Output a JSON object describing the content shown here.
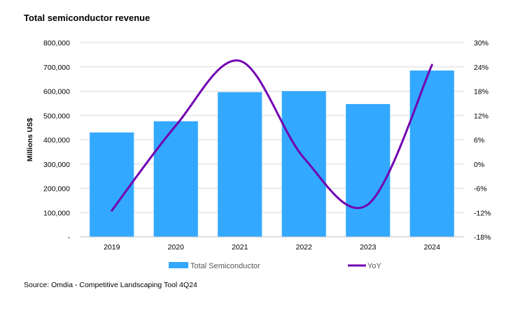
{
  "title": "Total semiconductor revenue",
  "source": "Source: Omdia - Competitive Landscaping Tool 4Q24",
  "colors": {
    "bar": "#33A8FF",
    "line": "#7200B2",
    "gridline": "#D9D9D9",
    "axis": "#BFBFBF"
  },
  "chart_data": {
    "type": "bar",
    "categories": [
      "2019",
      "2020",
      "2021",
      "2022",
      "2023",
      "2024"
    ],
    "series": [
      {
        "name": "Total Semiconductor",
        "type": "bar",
        "axis": "left",
        "values": [
          430000,
          476000,
          596000,
          600000,
          547000,
          685000
        ]
      },
      {
        "name": "YoY",
        "type": "line",
        "axis": "right",
        "smooth": true,
        "values": [
          -11.5,
          9.5,
          25.5,
          1.5,
          -10.0,
          24.5
        ]
      }
    ],
    "ylabel": "Millions US$",
    "ylim": [
      0,
      800000
    ],
    "y_ticks": [
      "-",
      "100,000",
      "200,000",
      "300,000",
      "400,000",
      "500,000",
      "600,000",
      "700,000",
      "800,000"
    ],
    "y2lim": [
      -18,
      30
    ],
    "y2_ticks": [
      "-18%",
      "-12%",
      "-6%",
      "0%",
      "6%",
      "12%",
      "18%",
      "24%",
      "30%"
    ],
    "grid": true,
    "legend": "bottom"
  }
}
